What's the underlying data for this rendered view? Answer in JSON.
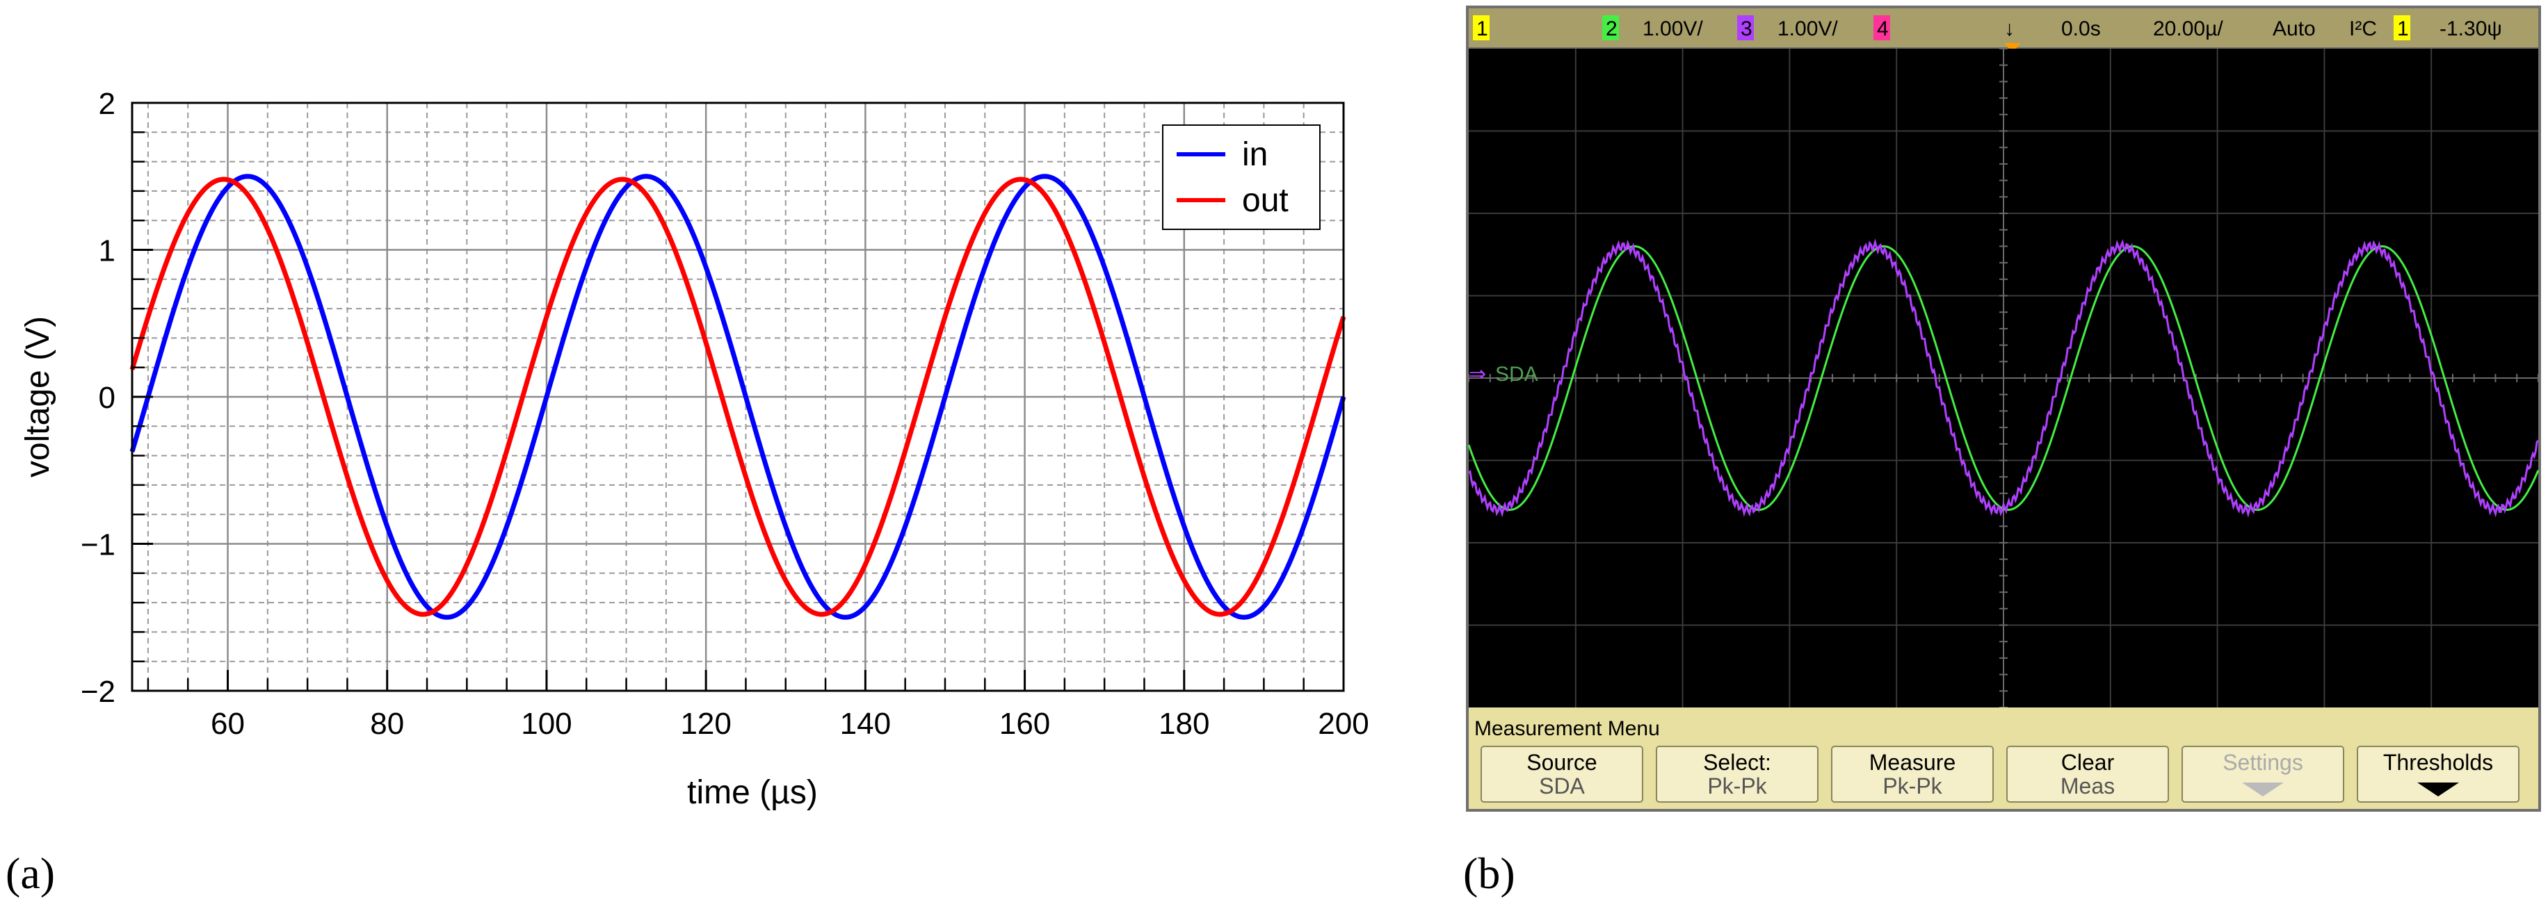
{
  "panel_labels": {
    "a": "(a)",
    "b": "(b)"
  },
  "chart_data": [
    {
      "type": "line",
      "xlabel": "time (µs)",
      "ylabel": "voltage (V)",
      "xlim": [
        48,
        200
      ],
      "ylim": [
        -2,
        2
      ],
      "xticks": [
        60,
        80,
        100,
        120,
        140,
        160,
        180,
        200
      ],
      "yticks": [
        -2,
        -1,
        0,
        1,
        2
      ],
      "ytick_labels": [
        "−2",
        "−1",
        "0",
        "1",
        "2"
      ],
      "grid": true,
      "legend": "top-right",
      "series": [
        {
          "name": "in",
          "color": "#0000ff",
          "amplitude": 1.5,
          "period_us": 50,
          "phase_peak_us": 62.5
        },
        {
          "name": "out",
          "color": "#ff0000",
          "amplitude": 1.48,
          "period_us": 50,
          "phase_peak_us": 59.5
        }
      ]
    },
    {
      "type": "line",
      "xlim": [
        0,
        10
      ],
      "ylim": [
        -4,
        4
      ],
      "grid": true,
      "series": [
        {
          "color": "#44ee44",
          "amplitude": 1.6,
          "period_div": 2.33,
          "phase_peak_div": 1.55
        },
        {
          "color": "#b040ff",
          "amplitude": 1.6,
          "period_div": 2.33,
          "phase_peak_div": 1.45
        }
      ]
    }
  ],
  "scope": {
    "header": {
      "ch1_badge": "1",
      "ch2_badge": "2",
      "ch2_scale": "1.00V/",
      "ch3_badge": "3",
      "ch3_scale": "1.00V/",
      "ch4_badge": "4",
      "trigger_symbol": "↓",
      "time_offset": "0.0s",
      "time_scale": "20.00µ/",
      "trigger_mode": "Auto",
      "trigger_source": "I²C",
      "trigger_ch_badge": "1",
      "trigger_level": "-1.30ψ"
    },
    "sda_label": "SDA",
    "ground_marker": "⇒",
    "menu_title": "Measurement Menu",
    "buttons": [
      {
        "label": "Source",
        "sub": "SDA",
        "enabled": true
      },
      {
        "label": "Select:",
        "sub": "Pk-Pk",
        "enabled": true
      },
      {
        "label": "Measure",
        "sub": "Pk-Pk",
        "enabled": true
      },
      {
        "label": "Clear",
        "sub": "Meas",
        "enabled": true
      },
      {
        "label": "Settings",
        "sub": "",
        "enabled": false
      },
      {
        "label": "Thresholds",
        "sub": "",
        "enabled": true
      }
    ],
    "colors": {
      "ch1": "#ffff00",
      "ch2": "#44ee44",
      "ch3": "#b040ff",
      "ch4": "#ff3399",
      "menu_bg": "#e8e0a0"
    }
  }
}
